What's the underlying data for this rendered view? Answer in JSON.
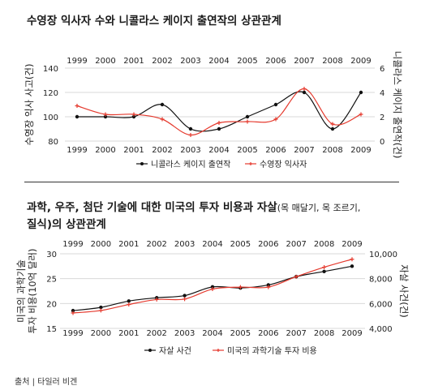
{
  "chart1": {
    "title": "수영장 익사자 수와 니콜라스 케이지 출연작의 상관관계"
  },
  "chart2": {
    "title": "과학, 우주, 첨단 기술에 대한 미국의 투자 비용과 자살",
    "title_suffix": "(목 매달기, 목 조르기,",
    "title_line2": "질식)의 상관관계"
  },
  "source": "출처 | 타일러 비겐",
  "colors": {
    "black_series": "#111111",
    "red_series": "#e53a2e",
    "grid": "#d9d9d9"
  },
  "chart_data": [
    {
      "type": "line",
      "title": "수영장 익사자 수와 니콜라스 케이지 출연작의 상관관계",
      "categories": [
        "1999",
        "2000",
        "2001",
        "2002",
        "2003",
        "2004",
        "2005",
        "2006",
        "2007",
        "2008",
        "2009"
      ],
      "ylabel": "수영장 익사 사고(건)",
      "ylim": [
        80,
        140
      ],
      "yticks": [
        "80",
        "100",
        "120",
        "140"
      ],
      "y2label": "니콜라스 케이지 출연작(건)",
      "y2lim": [
        0,
        6
      ],
      "y2ticks": [
        "0",
        "2",
        "4",
        "6"
      ],
      "grid": true,
      "legend_position": "bottom-center",
      "series": [
        {
          "name": "니콜라스 케이지 출연작",
          "axis": "right",
          "color": "#111111",
          "marker": "dot",
          "values": [
            2,
            2,
            2,
            3,
            1,
            1,
            2,
            3,
            4,
            1,
            4
          ]
        },
        {
          "name": "수영장 익사자",
          "axis": "left",
          "color": "#e53a2e",
          "marker": "plus",
          "values": [
            109,
            102,
            102,
            98,
            85,
            95,
            96,
            98,
            123,
            94,
            102
          ]
        }
      ]
    },
    {
      "type": "line",
      "title": "과학, 우주, 첨단 기술에 대한 미국의 투자 비용과 자살(목 매달기, 목 조르기, 질식)의 상관관계",
      "categories": [
        "1999",
        "2000",
        "2001",
        "2002",
        "2003",
        "2004",
        "2005",
        "2006",
        "2007",
        "2008",
        "2009"
      ],
      "ylabel": "미국의 과학기술 투자 비용(10억 달러)",
      "ylim": [
        15,
        30
      ],
      "yticks": [
        "15",
        "20",
        "25",
        "30"
      ],
      "y2label": "자살 사건(건)",
      "y2lim": [
        4000,
        10000
      ],
      "y2ticks": [
        "4,000",
        "6,000",
        "8,000",
        "10,000"
      ],
      "grid": true,
      "legend_position": "bottom-center",
      "series": [
        {
          "name": "자살 사건",
          "axis": "right",
          "color": "#111111",
          "marker": "dot",
          "values": [
            5427,
            5688,
            6198,
            6462,
            6635,
            7336,
            7248,
            7491,
            8161,
            8578,
            9000
          ]
        },
        {
          "name": "미국의 과학기술 투자 비용",
          "axis": "left",
          "color": "#e53a2e",
          "marker": "plus",
          "values": [
            18.1,
            18.6,
            19.8,
            20.8,
            20.9,
            22.9,
            23.3,
            23.3,
            25.4,
            27.3,
            28.9
          ]
        }
      ]
    }
  ]
}
